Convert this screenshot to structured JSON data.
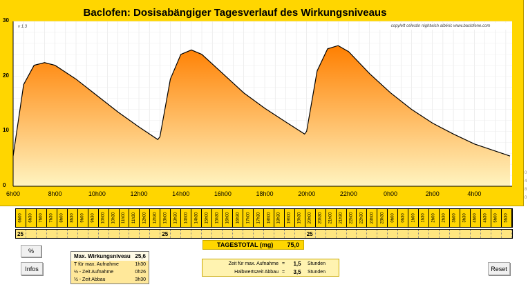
{
  "title": "Baclofen: Dosisabängiger Tagesverlauf des Wirkungsniveaus",
  "copyright": "copyleft célestin nightwish albéric www.baclofene.com",
  "version": "v 1.3",
  "colors": {
    "panel": "#ffd600",
    "fill_top": "#ff7f00",
    "fill_bottom": "#fff4c0",
    "line": "#000000"
  },
  "chart_data": {
    "type": "area",
    "title": "Baclofen: Dosisabängiger Tagesverlauf des Wirkungsniveaus",
    "ylim": [
      0,
      30
    ],
    "y_ticks": [
      "0",
      "10",
      "20",
      "30"
    ],
    "x_ticks": [
      "6h00",
      "8h00",
      "10h00",
      "12h00",
      "14h00",
      "16h00",
      "18h00",
      "20h00",
      "22h00",
      "0h00",
      "2h00",
      "4h00"
    ],
    "grid": true,
    "x_hours": [
      6,
      6.5,
      7,
      7.5,
      8,
      9,
      10,
      11,
      12,
      12.9,
      13,
      13.5,
      14,
      14.5,
      15,
      16,
      17,
      18,
      19,
      19.9,
      20,
      20.5,
      21,
      21.5,
      22,
      23,
      24,
      25,
      26,
      27,
      28,
      29.7
    ],
    "values": [
      5.5,
      18.5,
      22,
      22.5,
      22,
      19.5,
      16.5,
      13.5,
      10.8,
      8.5,
      9,
      19.5,
      24,
      24.8,
      24,
      20.5,
      17,
      14.2,
      11.7,
      9.5,
      10,
      21,
      25,
      25.6,
      24.5,
      20.5,
      17,
      14,
      11.5,
      9.5,
      7.7,
      5.5
    ]
  },
  "right_scale": [
    "0",
    "4",
    "8",
    "0"
  ],
  "hours": [
    "6h00",
    "6h30",
    "7h00",
    "7h30",
    "8h00",
    "8h30",
    "9h00",
    "9h30",
    "10h00",
    "10h30",
    "11h00",
    "11h30",
    "12h00",
    "12h30",
    "13h00",
    "13h30",
    "14h00",
    "14h30",
    "15h00",
    "15h30",
    "16h00",
    "16h30",
    "17h00",
    "17h30",
    "18h00",
    "18h30",
    "19h00",
    "19h30",
    "20h00",
    "20h30",
    "21h00",
    "21h30",
    "22h00",
    "22h30",
    "23h00",
    "23h30",
    "0h00",
    "0h30",
    "1h00",
    "1h30",
    "2h00",
    "2h30",
    "3h00",
    "3h30",
    "4h00",
    "4h30",
    "5h00",
    "5h30"
  ],
  "doses": [
    "25",
    "",
    "",
    "",
    "",
    "",
    "",
    "",
    "",
    "",
    "",
    "",
    "",
    "",
    "25",
    "",
    "",
    "",
    "",
    "",
    "",
    "",
    "",
    "",
    "",
    "",
    "",
    "",
    "25",
    "",
    "",
    "",
    "",
    "",
    "",
    "",
    "",
    "",
    "",
    "",
    "",
    "",
    "",
    "",
    "",
    "",
    "",
    ""
  ],
  "total": {
    "label": "TAGESTOTAL (mg)",
    "value": "75,0"
  },
  "buttons": {
    "percent": "%",
    "infos": "Infos",
    "reset": "Reset"
  },
  "info": {
    "title": "Max. Wirkungsniveau",
    "title_value": "25,6",
    "rows": [
      {
        "label": "T für max. Aufnahme",
        "value": "1h30"
      },
      {
        "label": "½ - Zeit Aufnahme",
        "value": "0h26"
      },
      {
        "label": "½ - Zeit Abbau",
        "value": "3h30"
      }
    ]
  },
  "params": [
    {
      "label": "Zeit für max. Aufnahme",
      "eq": "=",
      "value": "1,5",
      "unit": "Stunden"
    },
    {
      "label": "Halbwertszeit Abbau",
      "eq": "=",
      "value": "3,5",
      "unit": "Stunden"
    }
  ]
}
